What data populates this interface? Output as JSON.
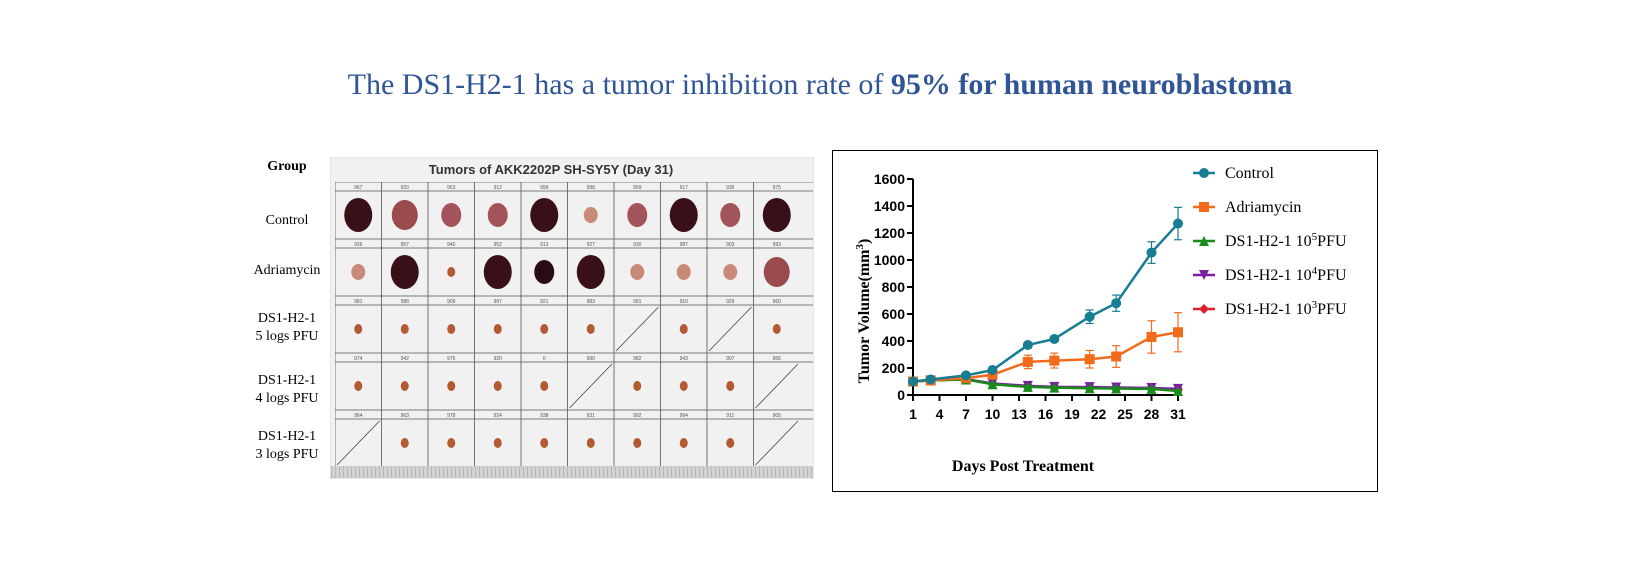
{
  "headline": {
    "normal": "The DS1-H2-1 has a tumor inhibition rate of ",
    "bold": "95% for human neuroblastoma"
  },
  "photo_panel": {
    "group_header": "Group",
    "title": "Tumors of AKK2202P SH-SY5Y (Day 31)",
    "groups": [
      {
        "label_line1": "Control",
        "label_line2": "",
        "ids": [
          "967",
          "933",
          "953",
          "912",
          "999",
          "998",
          "959",
          "917",
          "936",
          "975"
        ],
        "tumors": [
          "large-dark",
          "large",
          "medium",
          "medium",
          "large-dark",
          "small",
          "medium",
          "large-dark",
          "medium",
          "large-dark"
        ]
      },
      {
        "label_line1": "Adriamycin",
        "label_line2": "",
        "ids": [
          "926",
          "957",
          "940",
          "952",
          "913",
          "927",
          "930",
          "987",
          "903",
          "993"
        ],
        "tumors": [
          "small",
          "large-dark",
          "tiny",
          "large-dark",
          "medium-dark",
          "large-dark",
          "small",
          "small",
          "small",
          "large"
        ]
      },
      {
        "label_line1": "DS1-H2-1",
        "label_line2": "5 logs PFU",
        "ids": [
          "981",
          "988",
          "909",
          "997",
          "921",
          "983",
          "991",
          "910",
          "929",
          "960"
        ],
        "tumors": [
          "tiny",
          "tiny",
          "tiny",
          "tiny",
          "tiny",
          "tiny",
          "none",
          "tiny",
          "none",
          "tiny"
        ]
      },
      {
        "label_line1": "DS1-H2-1",
        "label_line2": "4 logs PFU",
        "ids": [
          "974",
          "942",
          "976",
          "920",
          "0",
          "990",
          "982",
          "943",
          "907",
          "966"
        ],
        "tumors": [
          "tiny",
          "tiny",
          "tiny",
          "tiny",
          "tiny",
          "none",
          "tiny",
          "tiny",
          "tiny",
          "none"
        ]
      },
      {
        "label_line1": "DS1-H2-1",
        "label_line2": "3 logs PFU",
        "ids": [
          "964",
          "963",
          "978",
          "924",
          "938",
          "931",
          "992",
          "994",
          "911",
          "905"
        ],
        "tumors": [
          "none",
          "tiny",
          "tiny",
          "tiny",
          "tiny",
          "tiny",
          "tiny",
          "tiny",
          "tiny",
          "none"
        ]
      }
    ]
  },
  "chart_data": {
    "type": "line",
    "title": "",
    "xlabel": "Days Post Treatment",
    "ylabel": "Tumor Volume(mm³)",
    "ylabel_main": "Tumor Volume(mm",
    "ylabel_sup": "3",
    "ylabel_end": ")",
    "xlim": [
      1,
      31
    ],
    "ylim": [
      0,
      1600
    ],
    "xticks": [
      1,
      4,
      7,
      10,
      13,
      16,
      19,
      22,
      25,
      28,
      31
    ],
    "yticks": [
      0,
      200,
      400,
      600,
      800,
      1000,
      1200,
      1400,
      1600
    ],
    "grid": false,
    "legend_position": "top-right",
    "x": [
      1,
      3,
      7,
      10,
      14,
      17,
      21,
      24,
      28,
      31
    ],
    "series": [
      {
        "name": "Control",
        "legend_main": "Control",
        "legend_sup": "",
        "legend_end": "",
        "color": "#167D92",
        "marker": "circle",
        "values": [
          100,
          115,
          145,
          185,
          370,
          415,
          580,
          680,
          1055,
          1270
        ],
        "errors": [
          10,
          10,
          12,
          15,
          20,
          20,
          50,
          60,
          80,
          120
        ]
      },
      {
        "name": "Adriamycin",
        "legend_main": "Adriamycin",
        "legend_sup": "",
        "legend_end": "",
        "color": "#F26B1D",
        "marker": "square",
        "values": [
          100,
          108,
          125,
          150,
          245,
          255,
          265,
          285,
          430,
          465
        ],
        "errors": [
          10,
          10,
          12,
          15,
          50,
          55,
          65,
          80,
          120,
          145
        ]
      },
      {
        "name": "DS1-H2-1 10^5PFU",
        "legend_main": "DS1-H2-1 10",
        "legend_sup": "5",
        "legend_end": "PFU",
        "color": "#1A8A1A",
        "marker": "triangle-up",
        "values": [
          100,
          108,
          115,
          80,
          60,
          55,
          50,
          48,
          45,
          30
        ],
        "errors": [
          8,
          8,
          10,
          10,
          10,
          10,
          10,
          10,
          10,
          8
        ]
      },
      {
        "name": "DS1-H2-1 10^4PFU",
        "legend_main": "DS1-H2-1 10",
        "legend_sup": "4",
        "legend_end": "PFU",
        "color": "#7B1FA2",
        "marker": "triangle-down",
        "values": [
          100,
          108,
          118,
          85,
          68,
          60,
          58,
          56,
          52,
          45
        ],
        "errors": [
          8,
          8,
          10,
          10,
          10,
          10,
          10,
          10,
          10,
          8
        ]
      },
      {
        "name": "DS1-H2-1 10^3PFU",
        "legend_main": "DS1-H2-1 10",
        "legend_sup": "3",
        "legend_end": "PFU",
        "color": "#E0202A",
        "marker": "diamond",
        "values": [
          100,
          108,
          117,
          84,
          65,
          58,
          55,
          53,
          50,
          40
        ],
        "errors": [
          8,
          8,
          10,
          10,
          10,
          10,
          10,
          10,
          10,
          8
        ]
      }
    ]
  }
}
